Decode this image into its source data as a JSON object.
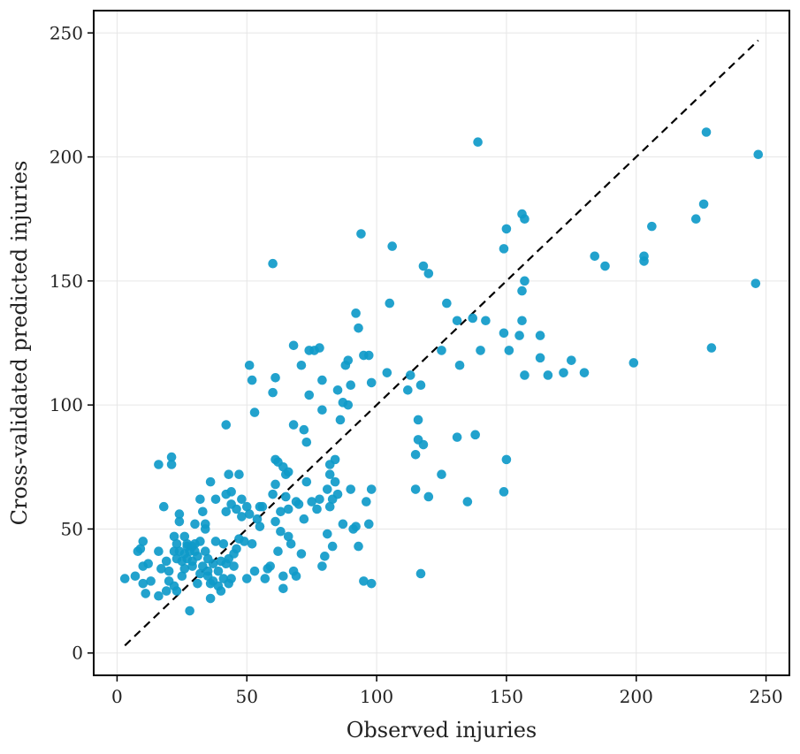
{
  "chart_data": {
    "type": "scatter",
    "title": "",
    "xlabel": "Observed injuries",
    "ylabel": "Cross-validated predicted injuries",
    "xlim": [
      -9,
      259
    ],
    "ylim": [
      -9,
      259
    ],
    "xticks": [
      "0",
      "50",
      "100",
      "150",
      "200",
      "250"
    ],
    "yticks": [
      "0",
      "50",
      "100",
      "150",
      "200",
      "250"
    ],
    "xtick_values": [
      0,
      50,
      100,
      150,
      200,
      250
    ],
    "ytick_values": [
      0,
      50,
      100,
      150,
      200,
      250
    ],
    "grid": true,
    "reference_line": {
      "style": "dashed",
      "color": "#000000",
      "from": [
        3,
        3
      ],
      "to": [
        247,
        247
      ]
    },
    "colors": {
      "points": "#0f9ac9",
      "grid": "#e6e6e6",
      "axes": "#000000"
    },
    "series": [
      {
        "points": [
          [
            3,
            30
          ],
          [
            7,
            31
          ],
          [
            8,
            41
          ],
          [
            9,
            42
          ],
          [
            10,
            45
          ],
          [
            10,
            35
          ],
          [
            10,
            28
          ],
          [
            11,
            24
          ],
          [
            12,
            36
          ],
          [
            13,
            29
          ],
          [
            16,
            23
          ],
          [
            16,
            76
          ],
          [
            16,
            41
          ],
          [
            17,
            34
          ],
          [
            18,
            59
          ],
          [
            19,
            25
          ],
          [
            19,
            37
          ],
          [
            20,
            29
          ],
          [
            20,
            33
          ],
          [
            21,
            76
          ],
          [
            21,
            79
          ],
          [
            22,
            47
          ],
          [
            22,
            27
          ],
          [
            22,
            41
          ],
          [
            23,
            38
          ],
          [
            23,
            25
          ],
          [
            23,
            44
          ],
          [
            24,
            53
          ],
          [
            24,
            56
          ],
          [
            24,
            41
          ],
          [
            25,
            37
          ],
          [
            25,
            31
          ],
          [
            26,
            47
          ],
          [
            26,
            40
          ],
          [
            26,
            34
          ],
          [
            27,
            43
          ],
          [
            27,
            38
          ],
          [
            27,
            44
          ],
          [
            28,
            17
          ],
          [
            28,
            41
          ],
          [
            29,
            37
          ],
          [
            29,
            35
          ],
          [
            29,
            43
          ],
          [
            30,
            44
          ],
          [
            30,
            41
          ],
          [
            30,
            52
          ],
          [
            31,
            39
          ],
          [
            31,
            28
          ],
          [
            32,
            32
          ],
          [
            32,
            45
          ],
          [
            32,
            62
          ],
          [
            33,
            57
          ],
          [
            33,
            35
          ],
          [
            34,
            41
          ],
          [
            34,
            52
          ],
          [
            34,
            50
          ],
          [
            35,
            33
          ],
          [
            35,
            38
          ],
          [
            35,
            31
          ],
          [
            36,
            22
          ],
          [
            36,
            69
          ],
          [
            36,
            28
          ],
          [
            37,
            36
          ],
          [
            37,
            29
          ],
          [
            38,
            62
          ],
          [
            38,
            45
          ],
          [
            39,
            27
          ],
          [
            39,
            33
          ],
          [
            40,
            37
          ],
          [
            40,
            25
          ],
          [
            41,
            44
          ],
          [
            41,
            30
          ],
          [
            42,
            64
          ],
          [
            42,
            57
          ],
          [
            42,
            92
          ],
          [
            42,
            36
          ],
          [
            43,
            72
          ],
          [
            43,
            38
          ],
          [
            43,
            28
          ],
          [
            44,
            60
          ],
          [
            44,
            65
          ],
          [
            44,
            30
          ],
          [
            45,
            40
          ],
          [
            45,
            35
          ],
          [
            46,
            58
          ],
          [
            46,
            42
          ],
          [
            47,
            72
          ],
          [
            47,
            46
          ],
          [
            48,
            62
          ],
          [
            48,
            55
          ],
          [
            49,
            45
          ],
          [
            50,
            59
          ],
          [
            50,
            30
          ],
          [
            51,
            116
          ],
          [
            51,
            56
          ],
          [
            52,
            110
          ],
          [
            52,
            44
          ],
          [
            53,
            97
          ],
          [
            53,
            33
          ],
          [
            54,
            54
          ],
          [
            55,
            59
          ],
          [
            55,
            51
          ],
          [
            56,
            59
          ],
          [
            57,
            30
          ],
          [
            58,
            34
          ],
          [
            59,
            35
          ],
          [
            60,
            105
          ],
          [
            60,
            64
          ],
          [
            60,
            157
          ],
          [
            61,
            111
          ],
          [
            61,
            78
          ],
          [
            61,
            68
          ],
          [
            61,
            53
          ],
          [
            62,
            77
          ],
          [
            62,
            41
          ],
          [
            63,
            49
          ],
          [
            63,
            57
          ],
          [
            64,
            75
          ],
          [
            64,
            31
          ],
          [
            64,
            26
          ],
          [
            65,
            72
          ],
          [
            65,
            63
          ],
          [
            66,
            47
          ],
          [
            66,
            73
          ],
          [
            66,
            58
          ],
          [
            67,
            44
          ],
          [
            68,
            92
          ],
          [
            68,
            124
          ],
          [
            68,
            33
          ],
          [
            69,
            61
          ],
          [
            69,
            31
          ],
          [
            70,
            60
          ],
          [
            71,
            40
          ],
          [
            71,
            116
          ],
          [
            72,
            90
          ],
          [
            72,
            54
          ],
          [
            73,
            85
          ],
          [
            73,
            69
          ],
          [
            74,
            104
          ],
          [
            74,
            122
          ],
          [
            75,
            61
          ],
          [
            76,
            122
          ],
          [
            77,
            58
          ],
          [
            78,
            62
          ],
          [
            78,
            123
          ],
          [
            79,
            110
          ],
          [
            79,
            98
          ],
          [
            79,
            35
          ],
          [
            80,
            39
          ],
          [
            81,
            66
          ],
          [
            81,
            48
          ],
          [
            82,
            59
          ],
          [
            82,
            72
          ],
          [
            82,
            76
          ],
          [
            83,
            62
          ],
          [
            83,
            43
          ],
          [
            84,
            69
          ],
          [
            84,
            78
          ],
          [
            85,
            106
          ],
          [
            85,
            64
          ],
          [
            86,
            94
          ],
          [
            87,
            101
          ],
          [
            87,
            52
          ],
          [
            88,
            116
          ],
          [
            89,
            118
          ],
          [
            89,
            100
          ],
          [
            90,
            108
          ],
          [
            90,
            66
          ],
          [
            91,
            50
          ],
          [
            92,
            137
          ],
          [
            92,
            51
          ],
          [
            93,
            131
          ],
          [
            93,
            43
          ],
          [
            94,
            169
          ],
          [
            95,
            120
          ],
          [
            95,
            29
          ],
          [
            96,
            61
          ],
          [
            97,
            120
          ],
          [
            97,
            52
          ],
          [
            98,
            28
          ],
          [
            98,
            109
          ],
          [
            98,
            66
          ],
          [
            104,
            113
          ],
          [
            105,
            141
          ],
          [
            106,
            164
          ],
          [
            112,
            106
          ],
          [
            113,
            112
          ],
          [
            115,
            80
          ],
          [
            115,
            66
          ],
          [
            116,
            94
          ],
          [
            116,
            86
          ],
          [
            117,
            108
          ],
          [
            117,
            32
          ],
          [
            118,
            156
          ],
          [
            118,
            84
          ],
          [
            120,
            153
          ],
          [
            120,
            63
          ],
          [
            125,
            122
          ],
          [
            125,
            72
          ],
          [
            127,
            141
          ],
          [
            131,
            87
          ],
          [
            131,
            134
          ],
          [
            132,
            116
          ],
          [
            135,
            61
          ],
          [
            137,
            135
          ],
          [
            138,
            88
          ],
          [
            139,
            206
          ],
          [
            140,
            122
          ],
          [
            142,
            134
          ],
          [
            149,
            163
          ],
          [
            149,
            129
          ],
          [
            149,
            65
          ],
          [
            150,
            171
          ],
          [
            150,
            78
          ],
          [
            151,
            122
          ],
          [
            155,
            128
          ],
          [
            156,
            177
          ],
          [
            156,
            146
          ],
          [
            156,
            134
          ],
          [
            157,
            112
          ],
          [
            157,
            175
          ],
          [
            157,
            150
          ],
          [
            163,
            119
          ],
          [
            163,
            128
          ],
          [
            166,
            112
          ],
          [
            172,
            113
          ],
          [
            175,
            118
          ],
          [
            180,
            113
          ],
          [
            184,
            160
          ],
          [
            188,
            156
          ],
          [
            199,
            117
          ],
          [
            203,
            160
          ],
          [
            203,
            158
          ],
          [
            206,
            172
          ],
          [
            223,
            175
          ],
          [
            226,
            181
          ],
          [
            227,
            210
          ],
          [
            229,
            123
          ],
          [
            246,
            149
          ],
          [
            247,
            201
          ]
        ]
      }
    ]
  }
}
